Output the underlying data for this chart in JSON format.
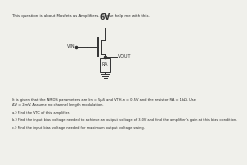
{
  "title_text": "This question is about Mosfets as Amplifiers. Please help me with this.",
  "vdd": "6V",
  "vin_label": "VIN",
  "vout_label": "VOUT",
  "ra_label": "RA",
  "body_text1": "It is given that the NMOS parameters are kn = 5μS and VTH,n = 0.5V and the resistor RA = 1kΩ. Use",
  "body_text2": "ΔV = 2mV. Assume no channel length modulation.",
  "q_a": "a.) Find the VTC of this amplifier.",
  "q_b": "b.) Find the input bias voltage needed to achieve an output voltage of 3.0V and find the amplifier's gain at this bias condition.",
  "q_c": "c.) Find the input bias voltage needed for maximum output voltage swing.",
  "bg_color": "#f0f0eb",
  "text_color": "#222222",
  "circuit_color": "#333333"
}
